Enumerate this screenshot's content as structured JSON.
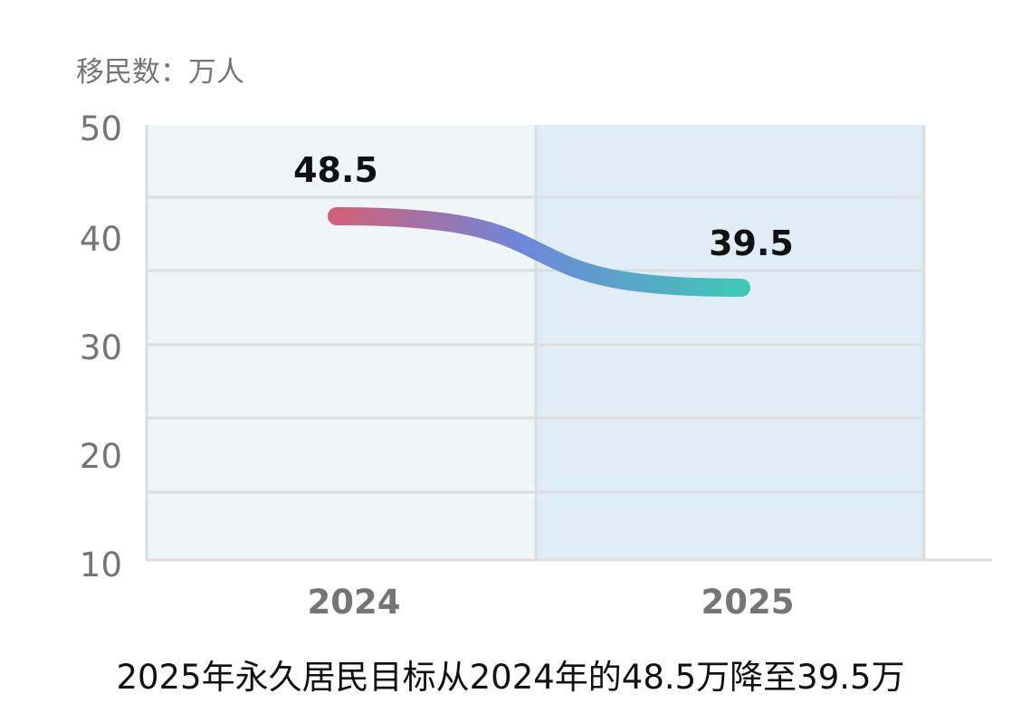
{
  "chart_data": {
    "type": "line",
    "ylabel": "移民数：万人",
    "categories": [
      "2024",
      "2025"
    ],
    "series": [
      {
        "name": "",
        "values": [
          48.5,
          39.5
        ],
        "labels": [
          "48.5",
          "39.5"
        ]
      }
    ],
    "yticks": [
      "50",
      "40",
      "30",
      "20",
      "10"
    ],
    "ylim": [
      10,
      50
    ],
    "grid": true,
    "caption": "2025年永久居民目标从2024年的48.5万降至39.5万"
  },
  "colors": {
    "band_2024": "#f0f5f8",
    "band_2025": "#dfeef6",
    "grid": "#dcdde0",
    "line_start": "#d0607a",
    "line_mid": "#6f86d9",
    "line_end": "#40c6b6",
    "tick_text": "#757575",
    "label_text": "#111111"
  }
}
